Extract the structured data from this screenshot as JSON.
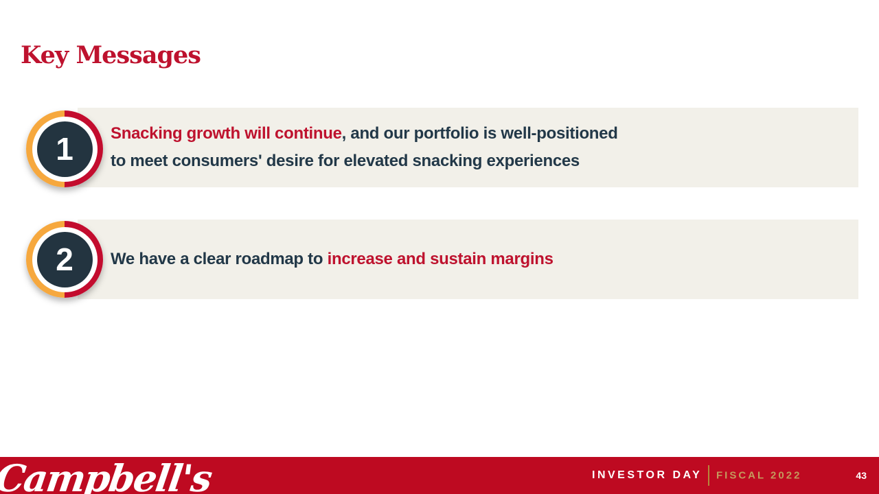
{
  "slide": {
    "title": "Key Messages"
  },
  "colors": {
    "brand_red": "#be122e",
    "footer_red": "#be0a21",
    "dark_navy_text": "#223848",
    "badge_navy": "#233440",
    "ring_orange": "#f6a83e",
    "ring_red": "#c30c2e",
    "card_background": "#f2f0e9",
    "gold": "#c49a5d"
  },
  "messages": [
    {
      "number": "1",
      "lines": [
        {
          "segments": [
            {
              "text": "Snacking growth will continue",
              "emphasis": "red"
            },
            {
              "text": ", and our portfolio is well-positioned",
              "emphasis": "dark"
            }
          ]
        },
        {
          "segments": [
            {
              "text": "to meet consumers' desire for elevated snacking experiences",
              "emphasis": "dark"
            }
          ]
        }
      ]
    },
    {
      "number": "2",
      "lines": [
        {
          "segments": [
            {
              "text": "We have a clear roadmap to ",
              "emphasis": "dark"
            },
            {
              "text": "increase and sustain margins",
              "emphasis": "red"
            }
          ]
        }
      ]
    }
  ],
  "footer": {
    "brand": "Campbell's",
    "event_label": "INVESTOR DAY",
    "fiscal_label": "FISCAL 2022",
    "page_number": "43"
  }
}
